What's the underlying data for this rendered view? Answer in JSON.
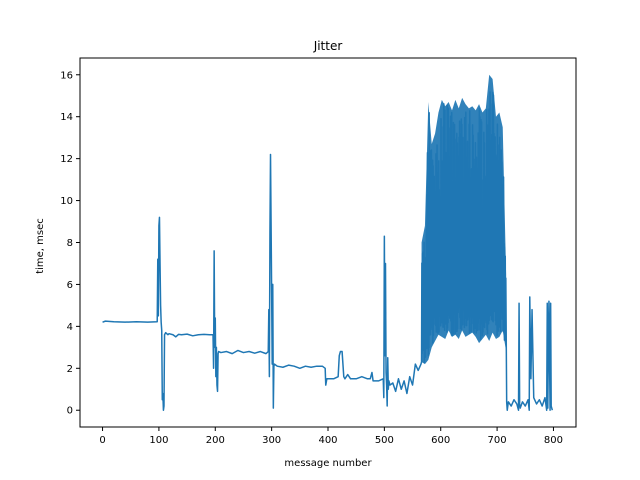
{
  "chart_data": {
    "type": "line",
    "title": "Jitter",
    "xlabel": "message number",
    "ylabel": "time, msec",
    "xlim": [
      -40,
      840
    ],
    "ylim": [
      -0.8,
      16.8
    ],
    "xticks": [
      0,
      100,
      200,
      300,
      400,
      500,
      600,
      700,
      800
    ],
    "yticks": [
      0,
      2,
      4,
      6,
      8,
      10,
      12,
      14,
      16
    ],
    "grid": false,
    "series": [
      {
        "color": "#1f77b4",
        "segments": [
          {
            "x": [
              0,
              5,
              20,
              40,
              60,
              80,
              97
            ],
            "y": [
              4.2,
              4.25,
              4.22,
              4.2,
              4.22,
              4.2,
              4.22
            ]
          },
          {
            "x": [
              98,
              99,
              100,
              101,
              102,
              103,
              104,
              105,
              106,
              107,
              108,
              109,
              110,
              112,
              116
            ],
            "y": [
              7.2,
              4.5,
              8.8,
              9.2,
              7.0,
              5.0,
              4.2,
              3.8,
              0.5,
              0.8,
              0.0,
              0.2,
              3.6,
              3.7,
              3.6
            ]
          },
          {
            "x": [
              118,
              125,
              130,
              135,
              140,
              150,
              160,
              170,
              180,
              190,
              196
            ],
            "y": [
              3.65,
              3.6,
              3.5,
              3.62,
              3.6,
              3.63,
              3.55,
              3.6,
              3.62,
              3.6,
              3.6
            ]
          },
          {
            "x": [
              197,
              198,
              199,
              200,
              201,
              202,
              203,
              204,
              205,
              206
            ],
            "y": [
              2.0,
              7.6,
              3.0,
              4.4,
              1.6,
              3.0,
              1.2,
              0.9,
              2.7,
              2.8
            ]
          },
          {
            "x": [
              210,
              220,
              230,
              240,
              250,
              260,
              270,
              280,
              290,
              294
            ],
            "y": [
              2.75,
              2.8,
              2.7,
              2.85,
              2.75,
              2.8,
              2.72,
              2.8,
              2.7,
              2.8
            ]
          },
          {
            "x": [
              295,
              296,
              297,
              298,
              299,
              300,
              301,
              302,
              303,
              304,
              305
            ],
            "y": [
              4.8,
              1.6,
              8.5,
              12.2,
              9.0,
              5.6,
              2.2,
              6.0,
              0.1,
              2.1,
              2.2
            ]
          },
          {
            "x": [
              310,
              320,
              330,
              340,
              350,
              360,
              370,
              380,
              390,
              395
            ],
            "y": [
              2.1,
              2.05,
              2.15,
              2.1,
              2.0,
              2.1,
              2.05,
              2.1,
              2.1,
              2.0
            ]
          },
          {
            "x": [
              396,
              398,
              400,
              410,
              418,
              420,
              422,
              425,
              428,
              430,
              435,
              440,
              450,
              460,
              470,
              475,
              478,
              480,
              490,
              498
            ],
            "y": [
              1.2,
              1.5,
              1.5,
              1.5,
              1.6,
              2.6,
              2.8,
              2.8,
              1.6,
              1.5,
              1.7,
              1.5,
              1.5,
              1.6,
              1.5,
              1.5,
              1.8,
              1.4,
              1.4,
              1.5
            ]
          },
          {
            "x": [
              499,
              500,
              501,
              502,
              503,
              504,
              505,
              506,
              507,
              508,
              510,
              515,
              520,
              525,
              530,
              535,
              540,
              545,
              550,
              555,
              560,
              565
            ],
            "y": [
              0.6,
              8.3,
              2.6,
              7.0,
              1.8,
              1.2,
              0.2,
              2.5,
              1.0,
              1.4,
              1.2,
              1.3,
              0.9,
              1.5,
              1.0,
              1.4,
              0.8,
              1.6,
              1.2,
              2.2,
              1.9,
              2.2
            ]
          }
        ],
        "bands": [
          {
            "x": [
              566,
              572,
              578,
              584,
              590,
              596,
              602,
              608,
              614,
              620,
              626,
              632,
              638,
              644,
              650,
              656,
              662,
              668,
              674,
              680,
              686,
              692,
              698,
              704,
              710,
              716
            ],
            "lo": [
              2.3,
              2.2,
              2.4,
              3.0,
              3.3,
              3.6,
              3.5,
              3.4,
              3.8,
              3.5,
              3.6,
              3.4,
              3.8,
              3.5,
              3.6,
              3.7,
              3.5,
              3.2,
              3.4,
              3.6,
              3.3,
              3.7,
              3.4,
              3.5,
              3.8,
              2.8
            ],
            "hi": [
              8.0,
              8.8,
              14.7,
              12.7,
              13.2,
              14.2,
              14.8,
              14.5,
              14.7,
              14.3,
              14.8,
              14.4,
              14.9,
              14.6,
              14.4,
              14.5,
              14.3,
              14.6,
              14.2,
              14.4,
              16.0,
              15.8,
              14.0,
              14.2,
              13.5,
              6.5
            ]
          }
        ],
        "tail": {
          "x": [
            717,
            718,
            720,
            725,
            730,
            735,
            738,
            739,
            740,
            741,
            745,
            750,
            755,
            757,
            758,
            760,
            762,
            765,
            770,
            775,
            780,
            785,
            788,
            789,
            790,
            791,
            792,
            794,
            795,
            796,
            798
          ],
          "y": [
            0.4,
            0.0,
            0.4,
            0.2,
            0.5,
            0.3,
            0.0,
            5.1,
            0.3,
            0.1,
            0.4,
            0.2,
            0.5,
            0.0,
            5.4,
            1.5,
            4.8,
            0.6,
            0.3,
            0.5,
            0.2,
            0.6,
            0.0,
            5.1,
            0.1,
            3.0,
            5.2,
            0.0,
            5.1,
            0.2,
            0.0
          ]
        }
      }
    ]
  }
}
